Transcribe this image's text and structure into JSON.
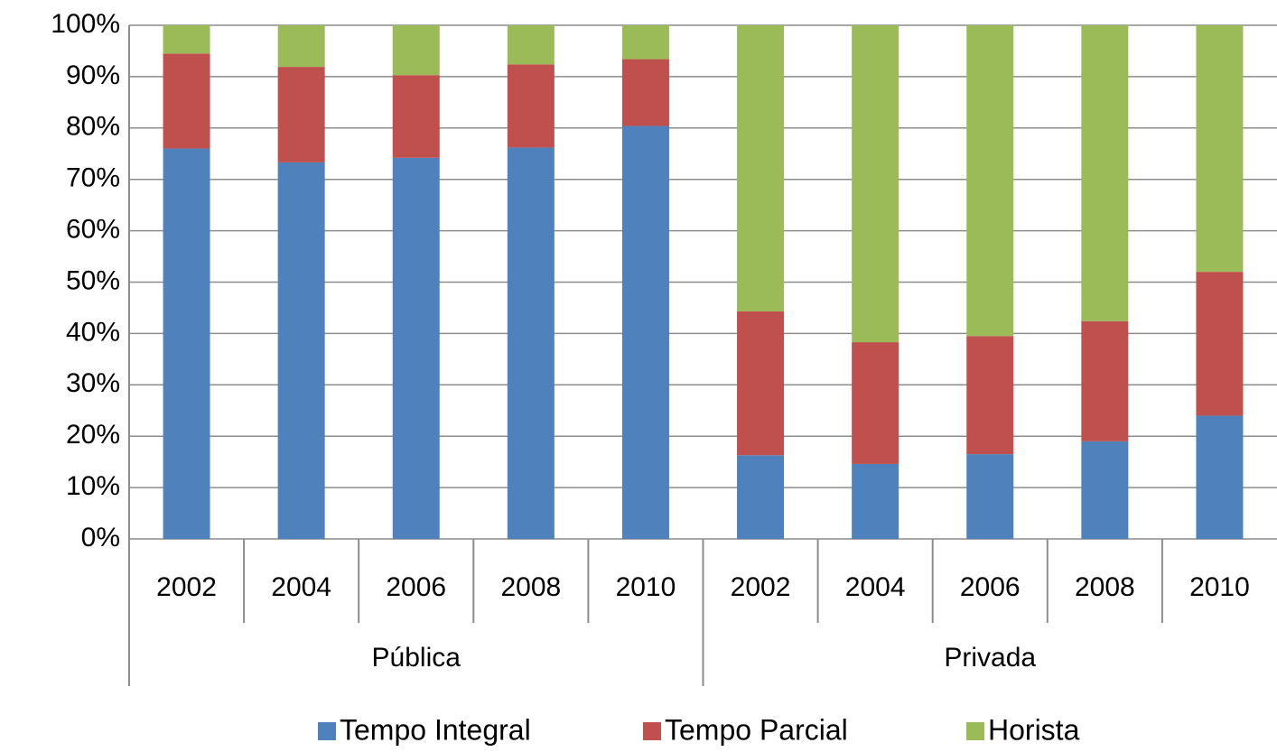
{
  "chart_data": {
    "type": "stacked_bar",
    "categories": [
      "2002",
      "2004",
      "2006",
      "2008",
      "2010",
      "2002",
      "2004",
      "2006",
      "2008",
      "2010"
    ],
    "category_groups": [
      "Pública",
      "Privada"
    ],
    "series": [
      {
        "name": "Tempo Integral",
        "color": "#4f81bd",
        "values": [
          76,
          73.3,
          74.2,
          76.2,
          80.4,
          16.3,
          14.6,
          16.5,
          19,
          24
        ]
      },
      {
        "name": "Tempo Parcial",
        "color": "#c0504d",
        "values": [
          18.5,
          18.6,
          16.1,
          16.2,
          13,
          28,
          23.7,
          23,
          23.4,
          28
        ]
      },
      {
        "name": "Horista",
        "color": "#9bbb59",
        "values": [
          5.5,
          8.1,
          9.7,
          7.6,
          6.6,
          55.7,
          61.7,
          60.5,
          57.6,
          48
        ]
      }
    ],
    "ylim": [
      0,
      100
    ],
    "yticks": [
      {
        "value": 0,
        "label": "0%"
      },
      {
        "value": 10,
        "label": "10%"
      },
      {
        "value": 20,
        "label": "20%"
      },
      {
        "value": 30,
        "label": "30%"
      },
      {
        "value": 40,
        "label": "40%"
      },
      {
        "value": 50,
        "label": "50%"
      },
      {
        "value": 60,
        "label": "60%"
      },
      {
        "value": 70,
        "label": "70%"
      },
      {
        "value": 80,
        "label": "80%"
      },
      {
        "value": 90,
        "label": "90%"
      },
      {
        "value": 100,
        "label": "100%"
      }
    ],
    "grid": true,
    "legend": "bottom"
  }
}
